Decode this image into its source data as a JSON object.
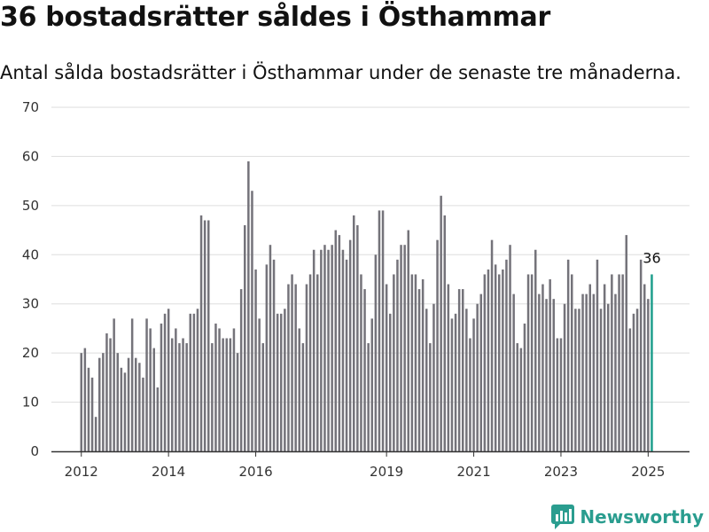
{
  "title": "36 bostadsrätter såldes i Östhammar",
  "subtitle": "Antal sålda bostadsrätter i Östhammar under de senaste tre månaderna.",
  "brand": {
    "name": "Newsworthy",
    "icon": "newsworthy-logo-icon"
  },
  "colors": {
    "bar": "#74737a",
    "highlight": "#1e9e8c",
    "grid": "#dddddd",
    "axis": "#333333"
  },
  "chart_data": {
    "type": "bar",
    "title": "36 bostadsrätter såldes i Östhammar",
    "subtitle": "Antal sålda bostadsrätter i Östhammar under de senaste tre månaderna.",
    "xlabel": "",
    "ylabel": "",
    "ylim": [
      0,
      70
    ],
    "yticks": [
      0,
      10,
      20,
      30,
      40,
      50,
      60,
      70
    ],
    "grid": true,
    "xticks": [
      {
        "label": "2012",
        "year": 2012
      },
      {
        "label": "2014",
        "year": 2014
      },
      {
        "label": "2016",
        "year": 2016
      },
      {
        "label": "2019",
        "year": 2019
      },
      {
        "label": "2021",
        "year": 2021
      },
      {
        "label": "2023",
        "year": 2023
      },
      {
        "label": "2025",
        "year": 2025
      }
    ],
    "start_year": 2012,
    "values": [
      20,
      21,
      17,
      15,
      7,
      19,
      20,
      24,
      23,
      27,
      20,
      17,
      16,
      19,
      27,
      19,
      18,
      15,
      27,
      25,
      21,
      13,
      26,
      28,
      29,
      23,
      25,
      22,
      23,
      22,
      28,
      28,
      29,
      48,
      47,
      47,
      22,
      26,
      25,
      23,
      23,
      23,
      25,
      20,
      33,
      46,
      59,
      53,
      37,
      27,
      22,
      38,
      42,
      39,
      28,
      28,
      29,
      34,
      36,
      34,
      25,
      22,
      34,
      36,
      41,
      36,
      41,
      42,
      41,
      42,
      45,
      44,
      41,
      39,
      43,
      48,
      46,
      36,
      33,
      22,
      27,
      40,
      49,
      49,
      34,
      28,
      36,
      39,
      42,
      42,
      45,
      36,
      36,
      33,
      35,
      29,
      22,
      30,
      43,
      52,
      48,
      34,
      27,
      28,
      33,
      33,
      29,
      23,
      27,
      30,
      32,
      36,
      37,
      43,
      38,
      36,
      37,
      39,
      42,
      32,
      22,
      21,
      26,
      36,
      36,
      41,
      32,
      34,
      31,
      35,
      31,
      23,
      23,
      30,
      39,
      36,
      29,
      29,
      32,
      32,
      34,
      32,
      39,
      29,
      34,
      30,
      36,
      32,
      36,
      36,
      44,
      25,
      28,
      29,
      39,
      34,
      31,
      36
    ],
    "highlight_last": true,
    "last_value_label": "36"
  }
}
